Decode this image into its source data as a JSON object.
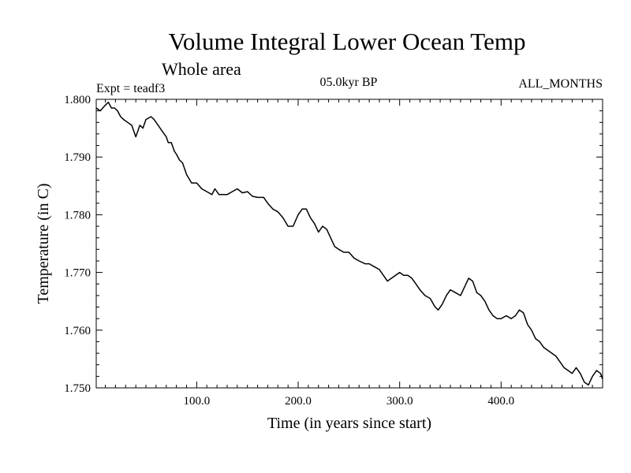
{
  "chart_data": {
    "type": "line",
    "title": "Volume Integral Lower Ocean Temp",
    "subtitle": "Whole area",
    "experiment_label": "Expt = teadf3",
    "period_label": "05.0kyr BP",
    "months_label": "ALL_MONTHS",
    "xlabel": "Time (in years since start)",
    "ylabel": "Temperature (in C)",
    "xlim": [
      1,
      500
    ],
    "ylim": [
      1.75,
      1.8
    ],
    "grid": false,
    "x_ticks": [
      100,
      200,
      300,
      400
    ],
    "x_tick_labels": [
      "100.0",
      "200.0",
      "300.0",
      "400.0"
    ],
    "y_ticks": [
      1.75,
      1.76,
      1.77,
      1.78,
      1.79,
      1.8
    ],
    "y_tick_labels": [
      "1.750",
      "1.760",
      "1.770",
      "1.780",
      "1.790",
      "1.800"
    ],
    "series": [
      {
        "name": "Volume integral lower ocean temperature",
        "color": "#000000",
        "x": [
          1,
          5,
          10,
          13,
          16,
          19,
          22,
          25,
          28,
          32,
          36,
          40,
          44,
          47,
          50,
          55,
          58,
          62,
          66,
          70,
          72,
          75,
          78,
          80,
          83,
          86,
          90,
          95,
          100,
          105,
          110,
          115,
          118,
          122,
          126,
          130,
          135,
          140,
          145,
          150,
          155,
          160,
          166,
          170,
          175,
          180,
          185,
          190,
          195,
          200,
          204,
          208,
          212,
          216,
          220,
          224,
          228,
          232,
          236,
          240,
          245,
          250,
          255,
          260,
          266,
          270,
          275,
          280,
          284,
          288,
          292,
          296,
          300,
          304,
          308,
          312,
          316,
          320,
          325,
          330,
          335,
          338,
          342,
          346,
          350,
          355,
          360,
          364,
          368,
          372,
          376,
          380,
          384,
          388,
          392,
          396,
          400,
          405,
          410,
          414,
          418,
          422,
          426,
          430,
          434,
          438,
          442,
          446,
          450,
          454,
          458,
          462,
          466,
          470,
          474,
          478,
          482,
          486,
          490,
          494,
          498,
          500
        ],
        "y": [
          1.7985,
          1.798,
          1.799,
          1.7995,
          1.7985,
          1.7985,
          1.798,
          1.797,
          1.7965,
          1.796,
          1.7955,
          1.7935,
          1.7955,
          1.795,
          1.7965,
          1.797,
          1.7965,
          1.7955,
          1.7945,
          1.7935,
          1.7925,
          1.7925,
          1.791,
          1.7905,
          1.7895,
          1.789,
          1.787,
          1.7855,
          1.7855,
          1.7845,
          1.784,
          1.7835,
          1.7845,
          1.7835,
          1.7835,
          1.7835,
          1.784,
          1.7845,
          1.7838,
          1.784,
          1.7832,
          1.783,
          1.783,
          1.782,
          1.781,
          1.7805,
          1.7795,
          1.778,
          1.778,
          1.78,
          1.781,
          1.781,
          1.7795,
          1.7785,
          1.777,
          1.778,
          1.7775,
          1.776,
          1.7745,
          1.774,
          1.7735,
          1.7735,
          1.7725,
          1.772,
          1.7715,
          1.7715,
          1.771,
          1.7705,
          1.7695,
          1.7685,
          1.769,
          1.7695,
          1.77,
          1.7695,
          1.7695,
          1.769,
          1.768,
          1.767,
          1.766,
          1.7655,
          1.764,
          1.7635,
          1.7645,
          1.766,
          1.767,
          1.7665,
          1.766,
          1.7675,
          1.769,
          1.7685,
          1.7665,
          1.766,
          1.765,
          1.7635,
          1.7625,
          1.762,
          1.762,
          1.7625,
          1.762,
          1.7625,
          1.7635,
          1.763,
          1.761,
          1.76,
          1.7585,
          1.758,
          1.757,
          1.7565,
          1.756,
          1.7555,
          1.7545,
          1.7535,
          1.753,
          1.7525,
          1.7535,
          1.7525,
          1.751,
          1.7505,
          1.752,
          1.753,
          1.7525,
          1.7515
        ]
      }
    ]
  }
}
